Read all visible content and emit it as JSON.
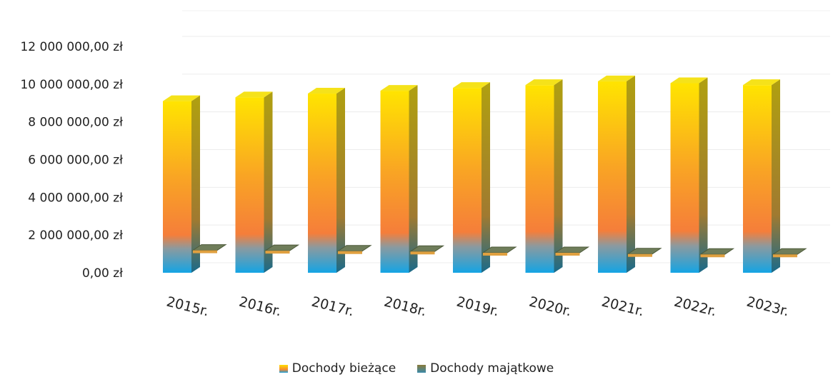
{
  "chart_data": {
    "type": "bar",
    "categories": [
      "2015r.",
      "2016r.",
      "2017r.",
      "2018r.",
      "2019r.",
      "2020r.",
      "2021r.",
      "2022r.",
      "2023r."
    ],
    "series": [
      {
        "name": "Dochody bieżące",
        "values": [
          9100000,
          9300000,
          9500000,
          9650000,
          9800000,
          9950000,
          10150000,
          10050000,
          9950000
        ]
      },
      {
        "name": "Dochody majątkowe",
        "values": [
          650000,
          600000,
          550000,
          500000,
          350000,
          350000,
          200000,
          150000,
          150000
        ]
      }
    ],
    "yticks": [
      "0,00 zł",
      "2 000 000,00 zł",
      "4 000 000,00 zł",
      "6 000 000,00 zł",
      "8 000 000,00 zł",
      "10 000 000,00 zł",
      "12 000 000,00 zł"
    ],
    "ylim": [
      0,
      12000000
    ],
    "grid": true,
    "legend_position": "bottom",
    "colors": {
      "bar_top": "#ffe000",
      "bar_mid": "#f7882f",
      "bar_base": "#1aa0dc",
      "bar_shadow": "#8a8a3a",
      "flat_bar": "#7a8a6a"
    }
  },
  "legend": {
    "items": [
      {
        "label": "Dochody bieżące",
        "color": "#f2c21a"
      },
      {
        "label": "Dochody majątkowe",
        "color": "#5a8aa0"
      }
    ]
  }
}
